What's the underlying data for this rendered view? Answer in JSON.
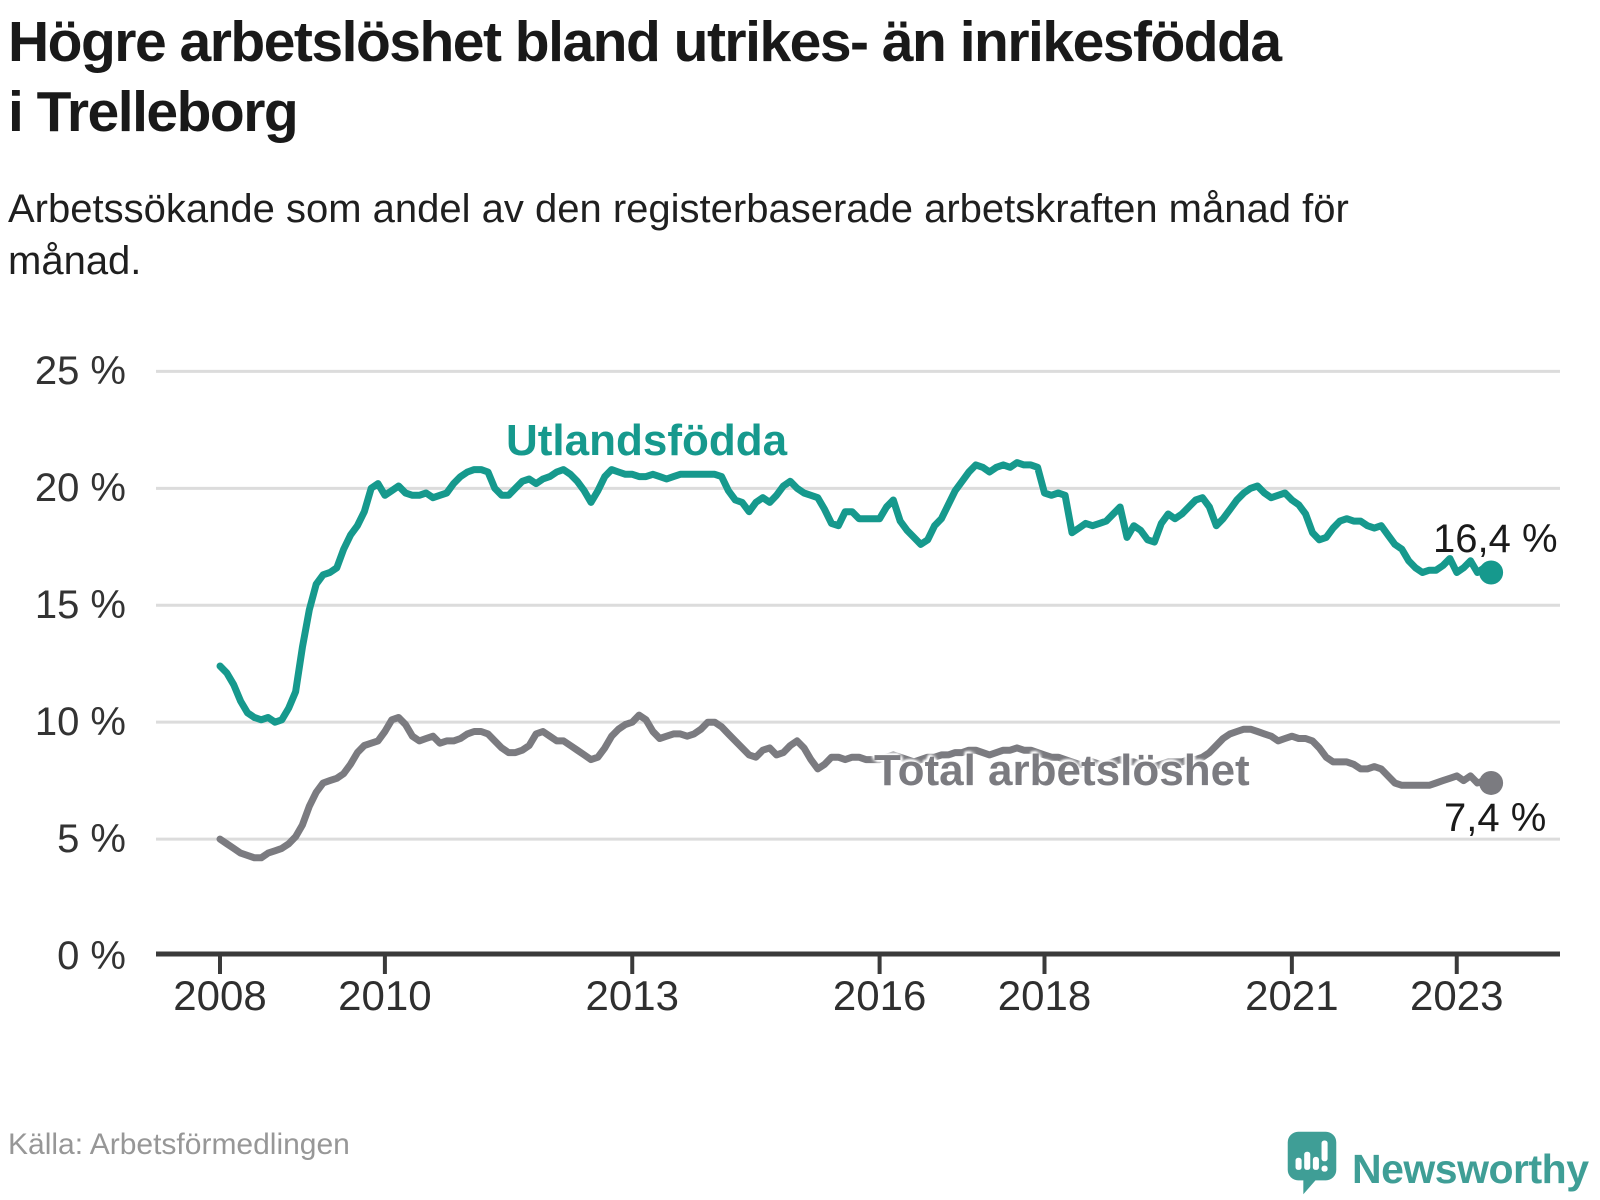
{
  "header": {
    "title": "Högre arbetslöshet bland utrikes- än inrikesfödda i Trelleborg",
    "subtitle": "Arbetssökande som andel av den registerbaserade arbetskraften månad för månad."
  },
  "footer": {
    "source": "Källa: Arbetsförmedlingen",
    "brand": "Newsworthy"
  },
  "colors": {
    "teal": "#16998d",
    "gray": "#7b7b80",
    "grid": "#dcdcdc",
    "axis": "#3a3a3a",
    "tick_text": "#2f2f2f",
    "value_text": "#1a1a1a",
    "logo_teal": "#3f9e96"
  },
  "chart_data": {
    "type": "line",
    "title": "Högre arbetslöshet bland utrikes- än inrikesfödda i Trelleborg",
    "subtitle": "Arbetssökande som andel av den registerbaserade arbetskraften månad för månad.",
    "unit": "%",
    "frequency": "monthly",
    "x_start": "2008-01",
    "x_end": "2023-06",
    "ylim": [
      0,
      25
    ],
    "grid": "horizontal",
    "y_ticks": [
      {
        "value": 0,
        "label": "0 %"
      },
      {
        "value": 5,
        "label": "5 %"
      },
      {
        "value": 10,
        "label": "10 %"
      },
      {
        "value": 15,
        "label": "15 %"
      },
      {
        "value": 20,
        "label": "20 %"
      },
      {
        "value": 25,
        "label": "25 %"
      }
    ],
    "x_ticks": [
      {
        "year": 2008,
        "label": "2008"
      },
      {
        "year": 2010,
        "label": "2010"
      },
      {
        "year": 2013,
        "label": "2013"
      },
      {
        "year": 2016,
        "label": "2016"
      },
      {
        "year": 2018,
        "label": "2018"
      },
      {
        "year": 2021,
        "label": "2021"
      },
      {
        "year": 2023,
        "label": "2023"
      }
    ],
    "series": [
      {
        "name": "Utlandsfödda",
        "color": "#16998d",
        "end_label": "16,4 %",
        "last_value": 16.4,
        "values": [
          12.4,
          12.1,
          11.6,
          10.9,
          10.4,
          10.2,
          10.1,
          10.2,
          10.0,
          10.1,
          10.6,
          11.3,
          13.2,
          14.8,
          15.9,
          16.3,
          16.4,
          16.6,
          17.4,
          18.0,
          18.4,
          19.0,
          20.0,
          20.2,
          19.7,
          19.9,
          20.1,
          19.8,
          19.7,
          19.7,
          19.8,
          19.6,
          19.7,
          19.8,
          20.2,
          20.5,
          20.7,
          20.8,
          20.8,
          20.7,
          20.0,
          19.7,
          19.7,
          20.0,
          20.3,
          20.4,
          20.2,
          20.4,
          20.5,
          20.7,
          20.8,
          20.6,
          20.3,
          19.9,
          19.4,
          19.9,
          20.5,
          20.8,
          20.7,
          20.6,
          20.6,
          20.5,
          20.5,
          20.6,
          20.5,
          20.4,
          20.5,
          20.6,
          20.6,
          20.6,
          20.6,
          20.6,
          20.6,
          20.5,
          19.9,
          19.5,
          19.4,
          19.0,
          19.4,
          19.6,
          19.4,
          19.7,
          20.1,
          20.3,
          20.0,
          19.8,
          19.7,
          19.6,
          19.1,
          18.5,
          18.4,
          19.0,
          19.0,
          18.7,
          18.7,
          18.7,
          18.7,
          19.2,
          19.5,
          18.6,
          18.2,
          17.9,
          17.6,
          17.8,
          18.4,
          18.7,
          19.3,
          19.9,
          20.3,
          20.7,
          21.0,
          20.9,
          20.7,
          20.9,
          21.0,
          20.9,
          21.1,
          21.0,
          21.0,
          20.9,
          19.8,
          19.7,
          19.8,
          19.7,
          18.1,
          18.3,
          18.5,
          18.4,
          18.5,
          18.6,
          18.9,
          19.2,
          17.9,
          18.4,
          18.2,
          17.8,
          17.7,
          18.5,
          18.9,
          18.7,
          18.9,
          19.2,
          19.5,
          19.6,
          19.2,
          18.4,
          18.7,
          19.1,
          19.5,
          19.8,
          20.0,
          20.1,
          19.8,
          19.6,
          19.7,
          19.8,
          19.5,
          19.3,
          18.9,
          18.1,
          17.8,
          17.9,
          18.3,
          18.6,
          18.7,
          18.6,
          18.6,
          18.4,
          18.3,
          18.4,
          18.0,
          17.6,
          17.4,
          16.9,
          16.6,
          16.4,
          16.5,
          16.5,
          16.7,
          17.0,
          16.4,
          16.6,
          16.9,
          16.4,
          16.6,
          16.4
        ]
      },
      {
        "name": "Total arbetslöshet",
        "color": "#7b7b80",
        "end_label": "7,4 %",
        "last_value": 7.4,
        "values": [
          5.0,
          4.8,
          4.6,
          4.4,
          4.3,
          4.2,
          4.2,
          4.4,
          4.5,
          4.6,
          4.8,
          5.1,
          5.6,
          6.4,
          7.0,
          7.4,
          7.5,
          7.6,
          7.8,
          8.2,
          8.7,
          9.0,
          9.1,
          9.2,
          9.6,
          10.1,
          10.2,
          9.9,
          9.4,
          9.2,
          9.3,
          9.4,
          9.1,
          9.2,
          9.2,
          9.3,
          9.5,
          9.6,
          9.6,
          9.5,
          9.2,
          8.9,
          8.7,
          8.7,
          8.8,
          9.0,
          9.5,
          9.6,
          9.4,
          9.2,
          9.2,
          9.0,
          8.8,
          8.6,
          8.4,
          8.5,
          8.9,
          9.4,
          9.7,
          9.9,
          10.0,
          10.3,
          10.1,
          9.6,
          9.3,
          9.4,
          9.5,
          9.5,
          9.4,
          9.5,
          9.7,
          10.0,
          10.0,
          9.8,
          9.5,
          9.2,
          8.9,
          8.6,
          8.5,
          8.8,
          8.9,
          8.6,
          8.7,
          9.0,
          9.2,
          8.9,
          8.4,
          8.0,
          8.2,
          8.5,
          8.5,
          8.4,
          8.5,
          8.5,
          8.4,
          8.4,
          8.4,
          8.5,
          8.6,
          8.5,
          8.4,
          8.3,
          8.4,
          8.5,
          8.5,
          8.6,
          8.6,
          8.7,
          8.7,
          8.8,
          8.8,
          8.7,
          8.6,
          8.7,
          8.8,
          8.8,
          8.9,
          8.8,
          8.8,
          8.7,
          8.6,
          8.5,
          8.5,
          8.4,
          8.3,
          8.2,
          8.2,
          8.3,
          8.2,
          8.2,
          8.3,
          8.4,
          8.3,
          8.3,
          8.2,
          8.2,
          8.1,
          8.2,
          8.3,
          8.3,
          8.3,
          8.4,
          8.4,
          8.5,
          8.7,
          9.0,
          9.3,
          9.5,
          9.6,
          9.7,
          9.7,
          9.6,
          9.5,
          9.4,
          9.2,
          9.3,
          9.4,
          9.3,
          9.3,
          9.2,
          8.9,
          8.5,
          8.3,
          8.3,
          8.3,
          8.2,
          8.0,
          8.0,
          8.1,
          8.0,
          7.7,
          7.4,
          7.3,
          7.3,
          7.3,
          7.3,
          7.3,
          7.4,
          7.5,
          7.6,
          7.7,
          7.5,
          7.7,
          7.4,
          7.5,
          7.4
        ]
      }
    ],
    "legend_position": "inline-labels"
  }
}
